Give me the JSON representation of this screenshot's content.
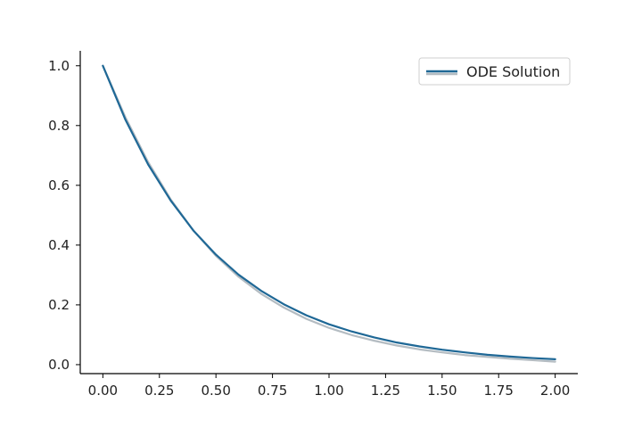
{
  "chart_data": {
    "type": "line",
    "title": "",
    "xlabel": "",
    "ylabel": "",
    "xlim": [
      -0.1,
      2.1
    ],
    "ylim": [
      -0.03,
      1.05
    ],
    "xticks": [
      0.0,
      0.25,
      0.5,
      0.75,
      1.0,
      1.25,
      1.5,
      1.75,
      2.0
    ],
    "xtick_labels": [
      "0.00",
      "0.25",
      "0.50",
      "0.75",
      "1.00",
      "1.25",
      "1.50",
      "1.75",
      "2.00"
    ],
    "yticks": [
      0.0,
      0.2,
      0.4,
      0.6,
      0.8,
      1.0
    ],
    "ytick_labels": [
      "0.0",
      "0.2",
      "0.4",
      "0.6",
      "0.8",
      "1.0"
    ],
    "grid": false,
    "legend": {
      "position": "top-right",
      "entries": [
        "ODE Solution"
      ]
    },
    "series": [
      {
        "name": "ODE Solution",
        "color": "#1f6896",
        "x": [
          0.0,
          0.1,
          0.2,
          0.3,
          0.4,
          0.5,
          0.6,
          0.7,
          0.8,
          0.9,
          1.0,
          1.1,
          1.2,
          1.3,
          1.4,
          1.5,
          1.6,
          1.7,
          1.8,
          1.9,
          2.0
        ],
        "y": [
          1.0,
          0.819,
          0.67,
          0.549,
          0.449,
          0.368,
          0.301,
          0.247,
          0.202,
          0.165,
          0.135,
          0.111,
          0.091,
          0.074,
          0.061,
          0.05,
          0.041,
          0.033,
          0.027,
          0.022,
          0.018
        ]
      },
      {
        "color": "#b4bcc2",
        "x": [
          0.0,
          0.1,
          0.2,
          0.3,
          0.4,
          0.5,
          0.6,
          0.7,
          0.8,
          0.9,
          1.0,
          1.1,
          1.2,
          1.3,
          1.4,
          1.5,
          1.6,
          1.7,
          1.8,
          1.9,
          2.0
        ],
        "y": [
          1.0,
          0.827,
          0.678,
          0.553,
          0.449,
          0.364,
          0.294,
          0.237,
          0.191,
          0.153,
          0.123,
          0.099,
          0.08,
          0.064,
          0.051,
          0.041,
          0.032,
          0.026,
          0.02,
          0.015,
          0.01
        ]
      }
    ]
  }
}
